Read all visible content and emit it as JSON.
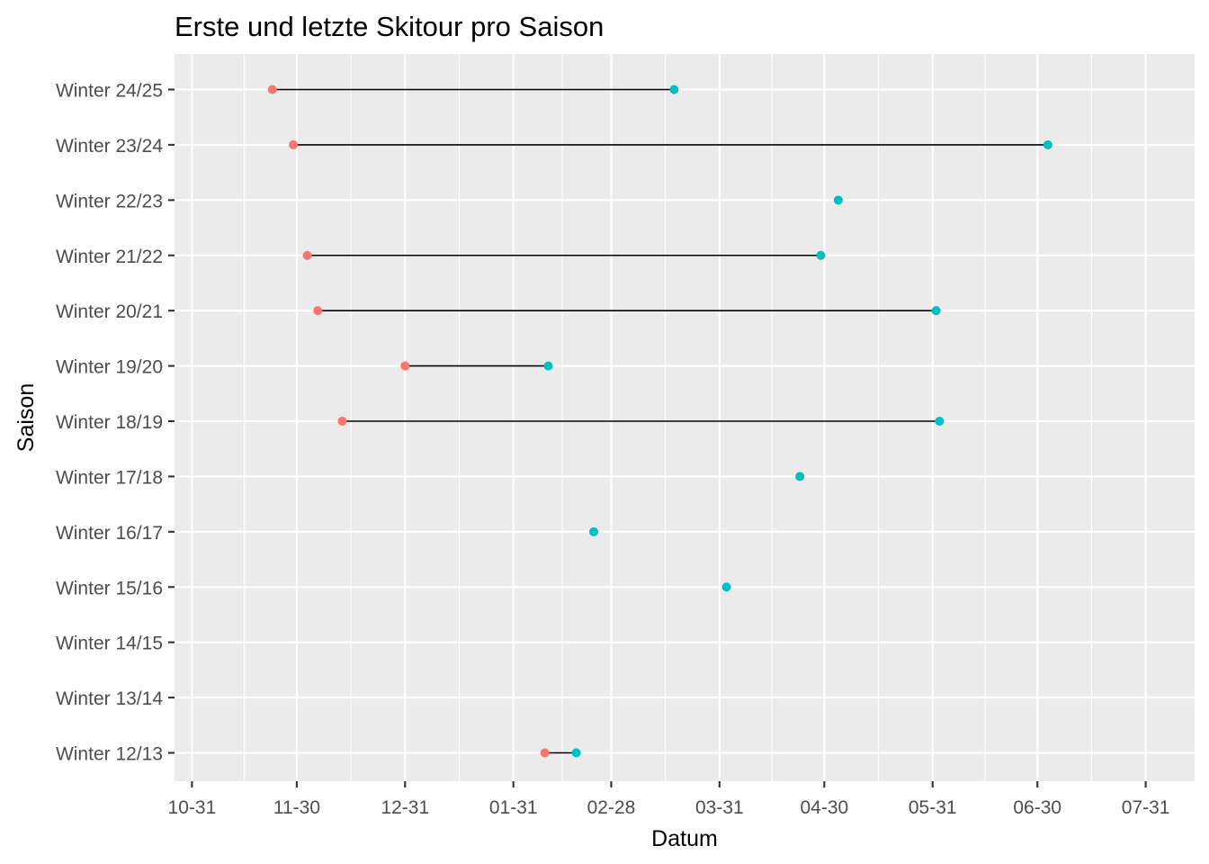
{
  "chart_data": {
    "type": "dumbbell",
    "title": "Erste und letzte Skitour pro Saison",
    "xlabel": "Datum",
    "ylabel": "Saison",
    "x_ticks": [
      "10-31",
      "11-30",
      "12-31",
      "01-31",
      "02-28",
      "03-31",
      "04-30",
      "05-31",
      "06-30",
      "07-31"
    ],
    "xlim": [
      "10-26",
      "08-14"
    ],
    "categories": [
      "Winter 12/13",
      "Winter 13/14",
      "Winter 14/15",
      "Winter 15/16",
      "Winter 16/17",
      "Winter 17/18",
      "Winter 18/19",
      "Winter 19/20",
      "Winter 20/21",
      "Winter 21/22",
      "Winter 22/23",
      "Winter 23/24",
      "Winter 24/25"
    ],
    "series": [
      {
        "values": [
          "02-09",
          null,
          null,
          null,
          null,
          null,
          "12-13",
          "12-31",
          "12-06",
          "12-03",
          null,
          "11-29",
          "11-23"
        ]
      },
      {
        "values": [
          "02-18",
          null,
          null,
          "04-02",
          "02-23",
          "04-23",
          "06-02",
          "02-10",
          "06-01",
          "04-29",
          "05-04",
          "07-03",
          "03-18"
        ]
      }
    ],
    "colors": {
      "first": "#F8766D",
      "last": "#00BFC4",
      "segment": "#000000",
      "panel": "#EBEBEB",
      "grid": "#FFFFFF",
      "tick": "#333333"
    },
    "grid": true,
    "legend": "none"
  }
}
